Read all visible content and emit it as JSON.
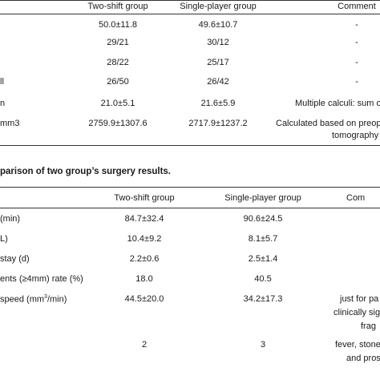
{
  "table1": {
    "headers": [
      "Two-shift group",
      "Single-player group",
      "Comment"
    ],
    "rows": [
      {
        "label": "",
        "two_shift": "50.0±11.8",
        "single": "49.6±10.7",
        "comment": "-"
      },
      {
        "label": "",
        "two_shift": "29/21",
        "single": "30/12",
        "comment": "-"
      },
      {
        "label": "",
        "two_shift": "28/22",
        "single": "25/17",
        "comment": "-"
      },
      {
        "label": "ll",
        "two_shift": "26/50",
        "single": "26/42",
        "comment": "-"
      },
      {
        "label": "n",
        "two_shift": "21.0±5.1",
        "single": "21.6±5.9",
        "comment": "Multiple calculi: sum o"
      },
      {
        "label": "mm3",
        "two_shift": "2759.9±1307.6",
        "single": "2717.9±1237.2",
        "comment": "Calculated based on preopen",
        "comment2": "tomography"
      }
    ]
  },
  "table2": {
    "caption": "parison of two group’s surgery results.",
    "headers": [
      "Two-shift group",
      "Single-player group",
      "Com"
    ],
    "rows": [
      {
        "label": "(min)",
        "two_shift": "84.7±32.4",
        "single": "90.6±24.5",
        "comment": []
      },
      {
        "label": "L)",
        "two_shift": "10.4±9.2",
        "single": "8.1±5.7",
        "comment": []
      },
      {
        "label": "stay (d)",
        "two_shift": "2.2±0.6",
        "single": "2.5±1.4",
        "comment": []
      },
      {
        "label": "ents (≥4mm) rate (%)",
        "two_shift": "18.0",
        "single": "40.5",
        "comment": []
      },
      {
        "label_pre": "speed (mm",
        "label_sup": "3",
        "label_post": "/min)",
        "two_shift": "44.5±20.0",
        "single": "34.2±17.3",
        "comment": [
          "just for pa",
          "clinically sig",
          "frag"
        ]
      },
      {
        "label": "",
        "two_shift": "2",
        "single": "3",
        "comment": [
          "fever, stone",
          "and pros"
        ]
      }
    ]
  }
}
